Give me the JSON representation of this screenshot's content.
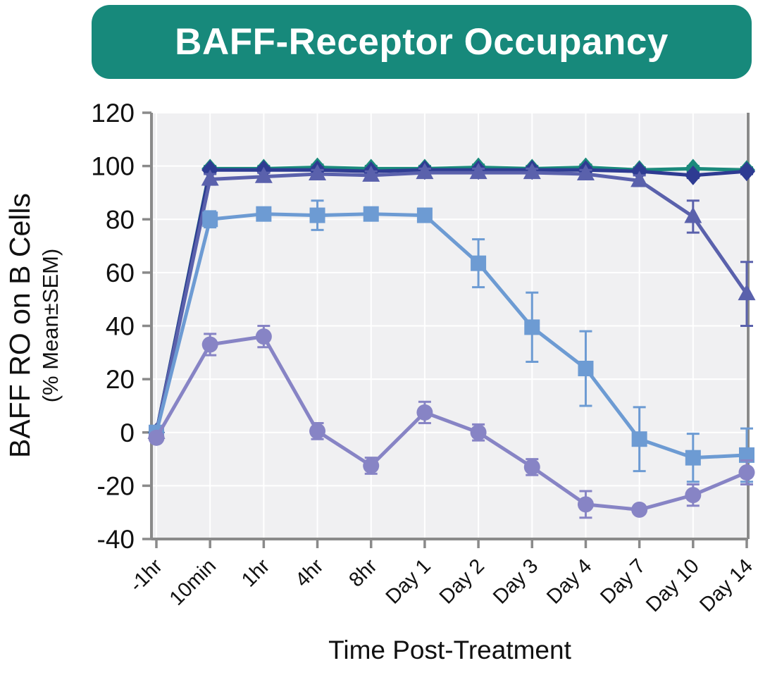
{
  "title": {
    "text": "BAFF-Receptor Occupancy",
    "bg_color": "#17897B",
    "text_color": "#FFFFFF"
  },
  "chart_data": {
    "type": "line",
    "categories": [
      "-1hr",
      "10min",
      "1hr",
      "4hr",
      "8hr",
      "Day 1",
      "Day 2",
      "Day 3",
      "Day 4",
      "Day 7",
      "Day 10",
      "Day 14"
    ],
    "series": [
      {
        "name": "teal-diamond",
        "marker": "diamond",
        "color": "#1B8A7C",
        "values": [
          0,
          99,
          99,
          99.5,
          99,
          99,
          99.5,
          99,
          99.5,
          98.5,
          99,
          98.5
        ],
        "errors": [
          1,
          1,
          1,
          1,
          1,
          1,
          1,
          1,
          1,
          1,
          1,
          1
        ]
      },
      {
        "name": "navy-diamond",
        "marker": "diamond",
        "color": "#2E3B92",
        "values": [
          0,
          98.5,
          98.5,
          98.5,
          98,
          98.5,
          98.5,
          98.5,
          98.5,
          98,
          96.5,
          98
        ],
        "errors": [
          1,
          1,
          1,
          1,
          1,
          1,
          1,
          1,
          1,
          1,
          1,
          1
        ]
      },
      {
        "name": "slate-triangle",
        "marker": "triangle",
        "color": "#5A61AC",
        "values": [
          0,
          95,
          96,
          97,
          96.5,
          97.5,
          97.5,
          97.5,
          97,
          94.5,
          81,
          52
        ],
        "errors": [
          1,
          2,
          1.5,
          1.5,
          1.5,
          1.5,
          1.5,
          1.5,
          1.5,
          2,
          6,
          12
        ]
      },
      {
        "name": "blue-square",
        "marker": "square",
        "color": "#6D9BD3",
        "values": [
          0,
          80,
          82,
          81.5,
          82,
          81.5,
          63.5,
          39.5,
          24,
          -2.5,
          -9.5,
          -8.5
        ],
        "errors": [
          1,
          3,
          2,
          5.5,
          2,
          2.5,
          9,
          13,
          14,
          12,
          9,
          10
        ]
      },
      {
        "name": "purple-circle",
        "marker": "circle",
        "color": "#8784C5",
        "values": [
          -2,
          33,
          36,
          0.5,
          -12.5,
          7.5,
          0,
          -13,
          -27,
          -29,
          -23.5,
          -15
        ],
        "errors": [
          1.5,
          4,
          4,
          3,
          3,
          4,
          3,
          3,
          5,
          1.5,
          4,
          4.5
        ]
      }
    ],
    "title": "BAFF-Receptor Occupancy",
    "xlabel": "Time Post-Treatment",
    "ylabel": "BAFF RO on B Cells",
    "ylabel_sub": "(% Mean±SEM)",
    "ylim": [
      -40,
      120
    ],
    "yticks": [
      120,
      100,
      80,
      60,
      40,
      20,
      0,
      -20,
      -40
    ],
    "grid": true,
    "legend": "none",
    "plot_bg": "#F0F0F2",
    "grid_color": "#FFFFFF",
    "axis_color": "#8A8A8A",
    "tick_label_color": "#111111"
  }
}
